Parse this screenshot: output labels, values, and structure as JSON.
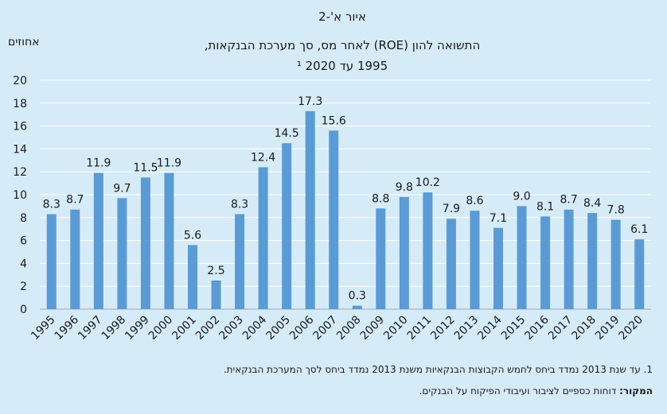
{
  "figure": {
    "title_line1": "איור א'-2",
    "title_line2": "התשואה להון (ROE) לאחר מס, סך מערכת הבנקאות,",
    "title_line3": "1995 עד 2020 ¹",
    "unit": "אחוזים"
  },
  "notes": {
    "footnote": "1. עד שנת 2013 נמדד ביחס לחמש הקבוצות הבנקאיות משנת 2013 נמדד ביחס לסך המערכת הבנקאית.",
    "source_label": "המקור:",
    "source_text": " דוחות כספיים לציבור ועיבודי הפיקוח על הבנקים."
  },
  "colors": {
    "bar": "#5b9bd5",
    "background": "#d6ebf8",
    "grid": "#ffffff"
  },
  "chart_data": {
    "type": "bar",
    "categories": [
      "1995",
      "1996",
      "1997",
      "1998",
      "1999",
      "2000",
      "2001",
      "2002",
      "2003",
      "2004",
      "2005",
      "2006",
      "2007",
      "2008",
      "2009",
      "2010",
      "2011",
      "2012",
      "2013",
      "2014",
      "2015",
      "2016",
      "2017",
      "2018",
      "2019",
      "2020"
    ],
    "values": [
      8.3,
      8.7,
      11.9,
      9.7,
      11.5,
      11.9,
      5.6,
      2.5,
      8.3,
      12.4,
      14.5,
      17.3,
      15.6,
      0.3,
      8.8,
      9.8,
      10.2,
      7.9,
      8.6,
      7.1,
      9.0,
      8.1,
      8.7,
      8.4,
      7.8,
      6.1
    ],
    "value_labels": [
      "8.3",
      "8.7",
      "11.9",
      "9.7",
      "11.5",
      "11.9",
      "5.6",
      "2.5",
      "8.3",
      "12.4",
      "14.5",
      "17.3",
      "15.6",
      "0.3",
      "8.8",
      "9.8",
      "10.2",
      "7.9",
      "8.6",
      "7.1",
      "9.0",
      "8.1",
      "8.7",
      "8.4",
      "7.8",
      "6.1"
    ],
    "y_ticks": [
      "0",
      "2",
      "4",
      "6",
      "8",
      "10",
      "12",
      "14",
      "16",
      "18",
      "20"
    ],
    "ylim": [
      0,
      20
    ],
    "grid": true
  }
}
